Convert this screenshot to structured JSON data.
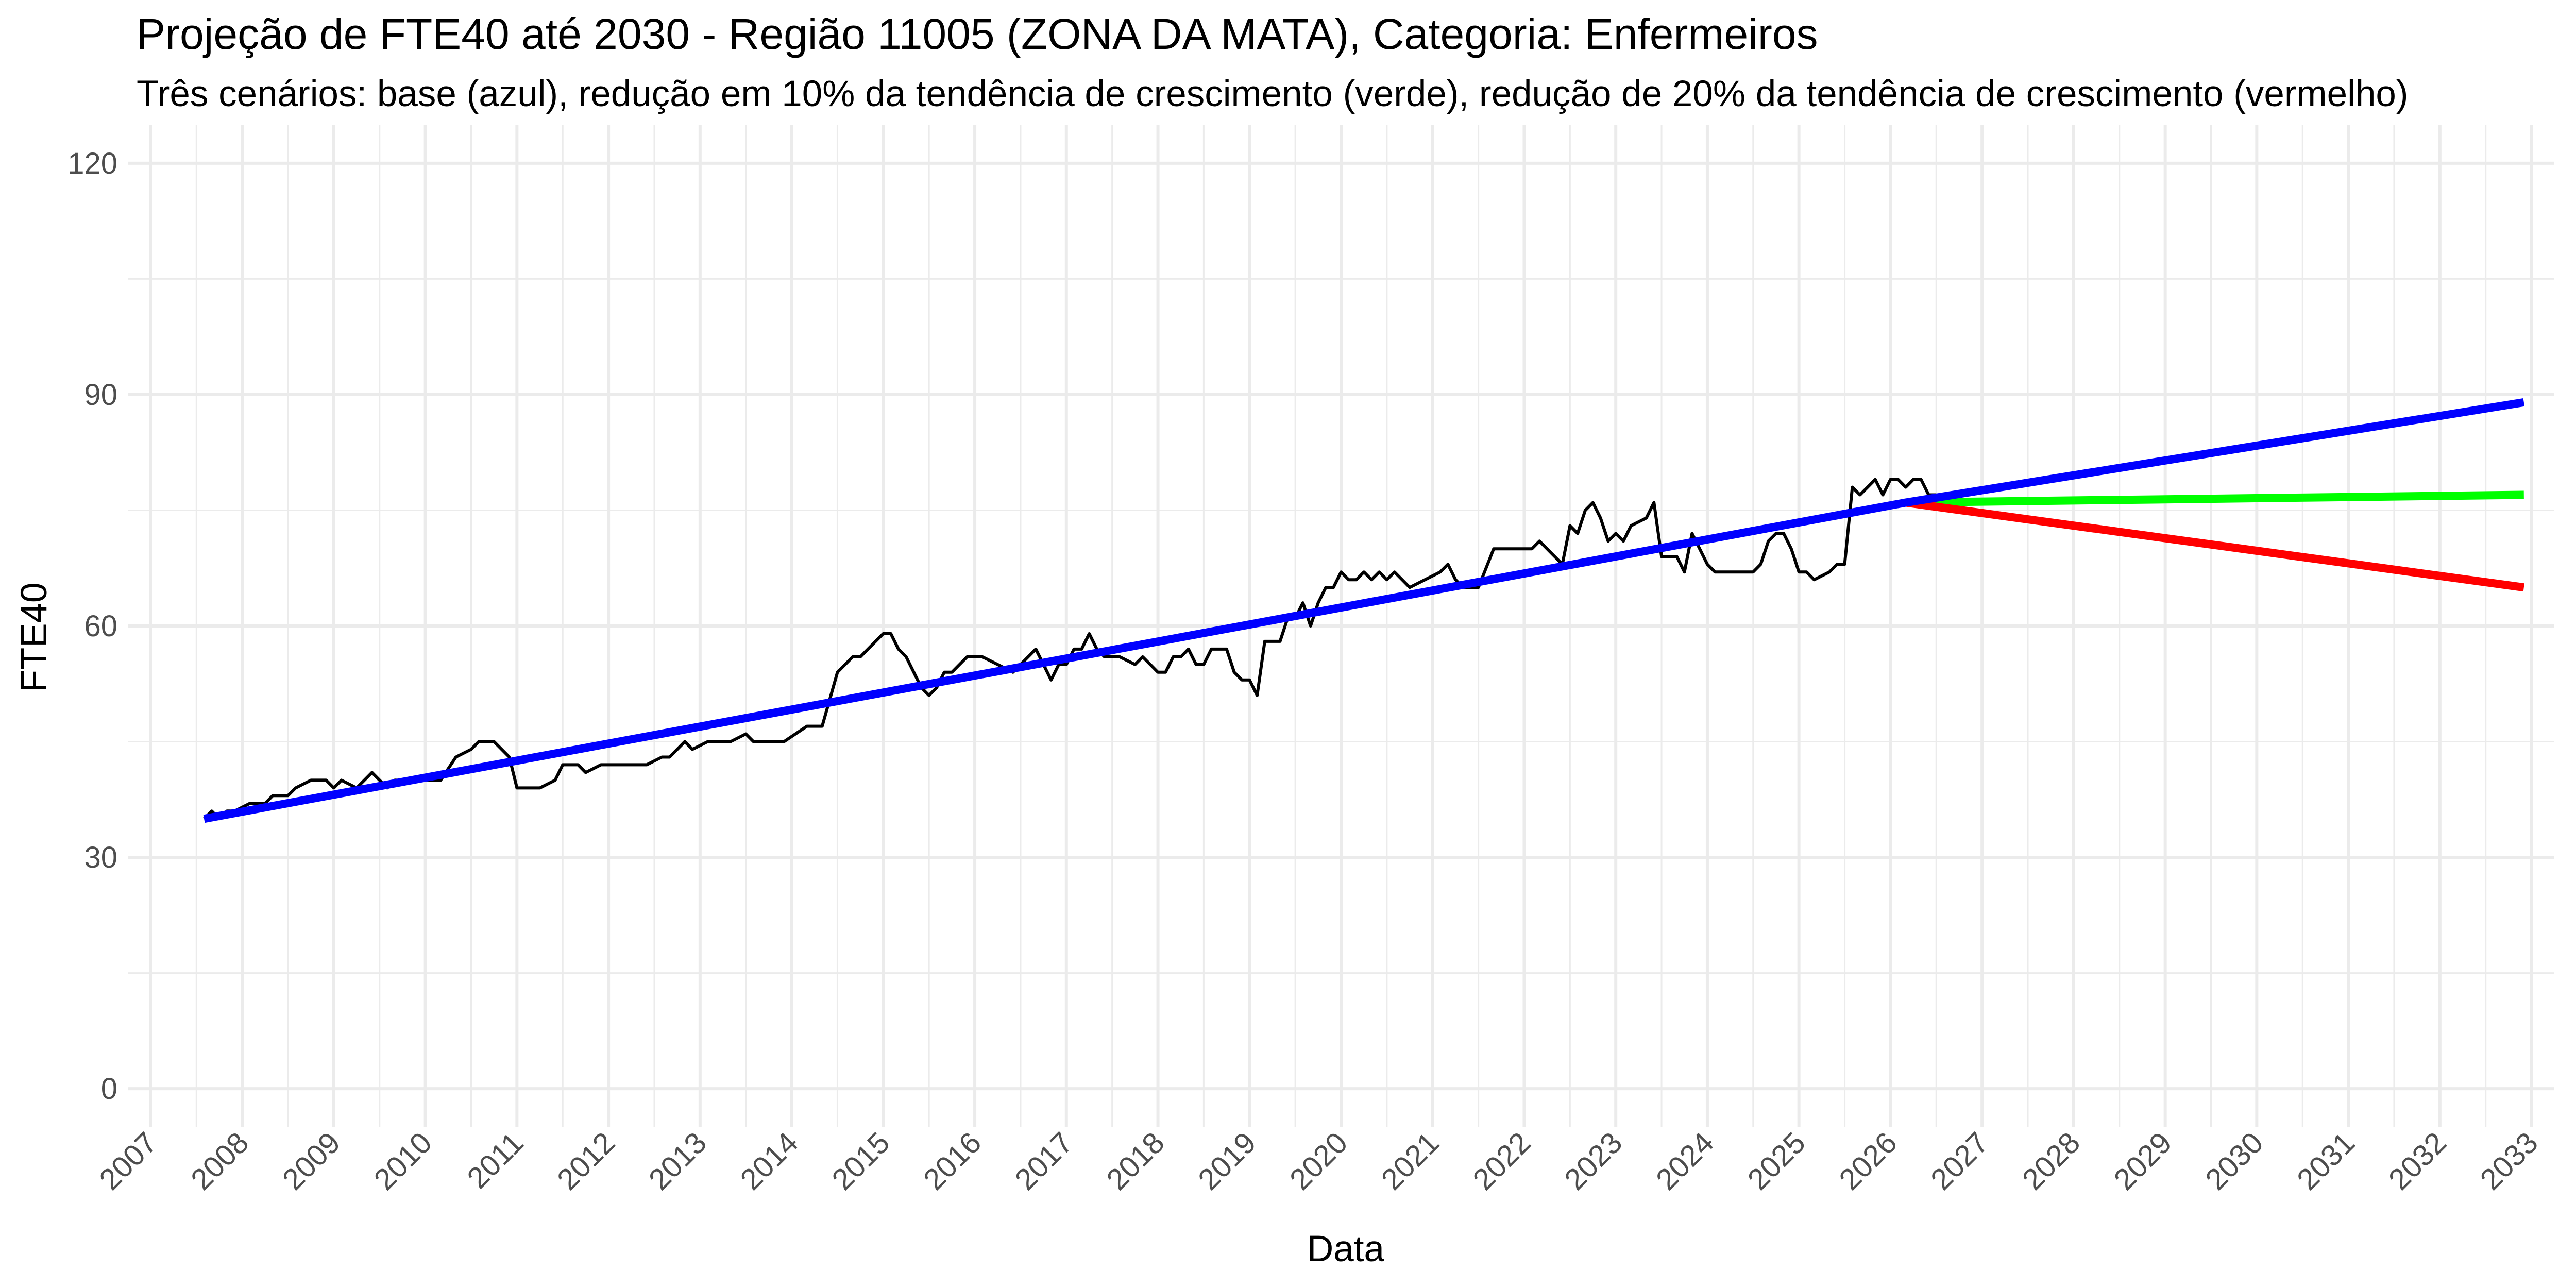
{
  "chart_data": {
    "type": "line",
    "title": "Projeção de FTE40 até 2030 - Região 11005 (ZONA DA MATA), Categoria: Enfermeiros",
    "subtitle": "Três cenários: base (azul), redução em 10% da tendência de crescimento (verde), redução de 20% da tendência de crescimento (vermelho)",
    "xlabel": "Data",
    "ylabel": "FTE40",
    "xlim": [
      "2006-10",
      "2033-04"
    ],
    "ylim": [
      -5,
      125
    ],
    "x_ticks": [
      "2007",
      "2008",
      "2009",
      "2010",
      "2011",
      "2012",
      "2013",
      "2014",
      "2015",
      "2016",
      "2017",
      "2018",
      "2019",
      "2020",
      "2021",
      "2022",
      "2023",
      "2024",
      "2025",
      "2026",
      "2027",
      "2028",
      "2029",
      "2030",
      "2031",
      "2032",
      "2033"
    ],
    "y_ticks": [
      0,
      30,
      60,
      90,
      120
    ],
    "grid": true,
    "legend": "none",
    "colors": {
      "observed": "#000000",
      "base": "#0000FF",
      "minus10": "#00FF00",
      "minus20": "#FF0000",
      "grid": "#EBEBEB",
      "tick_text": "#4D4D4D"
    },
    "series": [
      {
        "values": [
          [
            "2007-08",
            35
          ],
          [
            "2007-09",
            36
          ],
          [
            "2007-10",
            35
          ],
          [
            "2007-11",
            36
          ],
          [
            "2007-12",
            36
          ],
          [
            "2008-02",
            37
          ],
          [
            "2008-04",
            37
          ],
          [
            "2008-05",
            38
          ],
          [
            "2008-07",
            38
          ],
          [
            "2008-08",
            39
          ],
          [
            "2008-10",
            40
          ],
          [
            "2008-12",
            40
          ],
          [
            "2009-01",
            39
          ],
          [
            "2009-02",
            40
          ],
          [
            "2009-04",
            39
          ],
          [
            "2009-06",
            41
          ],
          [
            "2009-07",
            40
          ],
          [
            "2009-08",
            39
          ],
          [
            "2009-09",
            40
          ],
          [
            "2009-11",
            40
          ],
          [
            "2010-01",
            40
          ],
          [
            "2010-03",
            40
          ],
          [
            "2010-05",
            43
          ],
          [
            "2010-07",
            44
          ],
          [
            "2010-08",
            45
          ],
          [
            "2010-10",
            45
          ],
          [
            "2010-12",
            43
          ],
          [
            "2011-01",
            39
          ],
          [
            "2011-04",
            39
          ],
          [
            "2011-06",
            40
          ],
          [
            "2011-07",
            42
          ],
          [
            "2011-09",
            42
          ],
          [
            "2011-10",
            41
          ],
          [
            "2011-12",
            42
          ],
          [
            "2012-03",
            42
          ],
          [
            "2012-06",
            42
          ],
          [
            "2012-08",
            43
          ],
          [
            "2012-09",
            43
          ],
          [
            "2012-11",
            45
          ],
          [
            "2012-12",
            44
          ],
          [
            "2013-02",
            45
          ],
          [
            "2013-05",
            45
          ],
          [
            "2013-07",
            46
          ],
          [
            "2013-08",
            45
          ],
          [
            "2013-10",
            45
          ],
          [
            "2013-12",
            45
          ],
          [
            "2014-03",
            47
          ],
          [
            "2014-05",
            47
          ],
          [
            "2014-07",
            54
          ],
          [
            "2014-08",
            55
          ],
          [
            "2014-09",
            56
          ],
          [
            "2014-10",
            56
          ],
          [
            "2014-12",
            58
          ],
          [
            "2015-01",
            59
          ],
          [
            "2015-02",
            59
          ],
          [
            "2015-03",
            57
          ],
          [
            "2015-04",
            56
          ],
          [
            "2015-06",
            52
          ],
          [
            "2015-07",
            51
          ],
          [
            "2015-08",
            52
          ],
          [
            "2015-09",
            54
          ],
          [
            "2015-10",
            54
          ],
          [
            "2015-12",
            56
          ],
          [
            "2016-02",
            56
          ],
          [
            "2016-04",
            55
          ],
          [
            "2016-06",
            54
          ],
          [
            "2016-09",
            57
          ],
          [
            "2016-10",
            55
          ],
          [
            "2016-11",
            53
          ],
          [
            "2016-12",
            55
          ],
          [
            "2017-01",
            55
          ],
          [
            "2017-02",
            57
          ],
          [
            "2017-03",
            57
          ],
          [
            "2017-04",
            59
          ],
          [
            "2017-05",
            57
          ],
          [
            "2017-06",
            56
          ],
          [
            "2017-08",
            56
          ],
          [
            "2017-10",
            55
          ],
          [
            "2017-11",
            56
          ],
          [
            "2018-01",
            54
          ],
          [
            "2018-02",
            54
          ],
          [
            "2018-03",
            56
          ],
          [
            "2018-04",
            56
          ],
          [
            "2018-05",
            57
          ],
          [
            "2018-06",
            55
          ],
          [
            "2018-07",
            55
          ],
          [
            "2018-08",
            57
          ],
          [
            "2018-10",
            57
          ],
          [
            "2018-11",
            54
          ],
          [
            "2018-12",
            53
          ],
          [
            "2019-01",
            53
          ],
          [
            "2019-02",
            51
          ],
          [
            "2019-03",
            58
          ],
          [
            "2019-05",
            58
          ],
          [
            "2019-06",
            61
          ],
          [
            "2019-07",
            61
          ],
          [
            "2019-08",
            63
          ],
          [
            "2019-09",
            60
          ],
          [
            "2019-10",
            63
          ],
          [
            "2019-11",
            65
          ],
          [
            "2019-12",
            65
          ],
          [
            "2020-01",
            67
          ],
          [
            "2020-02",
            66
          ],
          [
            "2020-03",
            66
          ],
          [
            "2020-04",
            67
          ],
          [
            "2020-05",
            66
          ],
          [
            "2020-06",
            67
          ],
          [
            "2020-07",
            66
          ],
          [
            "2020-08",
            67
          ],
          [
            "2020-09",
            66
          ],
          [
            "2020-10",
            65
          ],
          [
            "2020-12",
            66
          ],
          [
            "2021-02",
            67
          ],
          [
            "2021-03",
            68
          ],
          [
            "2021-04",
            66
          ],
          [
            "2021-05",
            65
          ],
          [
            "2021-07",
            65
          ],
          [
            "2021-09",
            70
          ],
          [
            "2021-11",
            70
          ],
          [
            "2022-02",
            70
          ],
          [
            "2022-03",
            71
          ],
          [
            "2022-05",
            69
          ],
          [
            "2022-06",
            68
          ],
          [
            "2022-07",
            73
          ],
          [
            "2022-08",
            72
          ],
          [
            "2022-09",
            75
          ],
          [
            "2022-10",
            76
          ],
          [
            "2022-11",
            74
          ],
          [
            "2022-12",
            71
          ],
          [
            "2023-01",
            72
          ],
          [
            "2023-02",
            71
          ],
          [
            "2023-03",
            73
          ],
          [
            "2023-05",
            74
          ],
          [
            "2023-06",
            76
          ],
          [
            "2023-07",
            69
          ],
          [
            "2023-09",
            69
          ],
          [
            "2023-10",
            67
          ],
          [
            "2023-11",
            72
          ],
          [
            "2023-12",
            70
          ],
          [
            "2024-01",
            68
          ],
          [
            "2024-02",
            67
          ],
          [
            "2024-04",
            67
          ],
          [
            "2024-07",
            67
          ],
          [
            "2024-08",
            68
          ],
          [
            "2024-09",
            71
          ],
          [
            "2024-10",
            72
          ],
          [
            "2024-11",
            72
          ],
          [
            "2024-12",
            70
          ],
          [
            "2025-01",
            67
          ],
          [
            "2025-02",
            67
          ],
          [
            "2025-03",
            66
          ],
          [
            "2025-05",
            67
          ],
          [
            "2025-06",
            68
          ],
          [
            "2025-07",
            68
          ],
          [
            "2025-08",
            78
          ],
          [
            "2025-09",
            77
          ],
          [
            "2025-10",
            78
          ],
          [
            "2025-11",
            79
          ],
          [
            "2025-12",
            77
          ],
          [
            "2026-01",
            79
          ],
          [
            "2026-02",
            79
          ],
          [
            "2026-03",
            78
          ],
          [
            "2026-04",
            79
          ],
          [
            "2026-05",
            79
          ],
          [
            "2026-06",
            77
          ],
          [
            "2026-07",
            77
          ]
        ]
      },
      {
        "values": [
          [
            "2007-08",
            35
          ],
          [
            "2026-03",
            76
          ],
          [
            "2032-12",
            89
          ]
        ]
      },
      {
        "values": [
          [
            "2026-03",
            76
          ],
          [
            "2032-12",
            77
          ]
        ]
      },
      {
        "values": [
          [
            "2026-03",
            76
          ],
          [
            "2032-12",
            65
          ]
        ]
      }
    ]
  }
}
